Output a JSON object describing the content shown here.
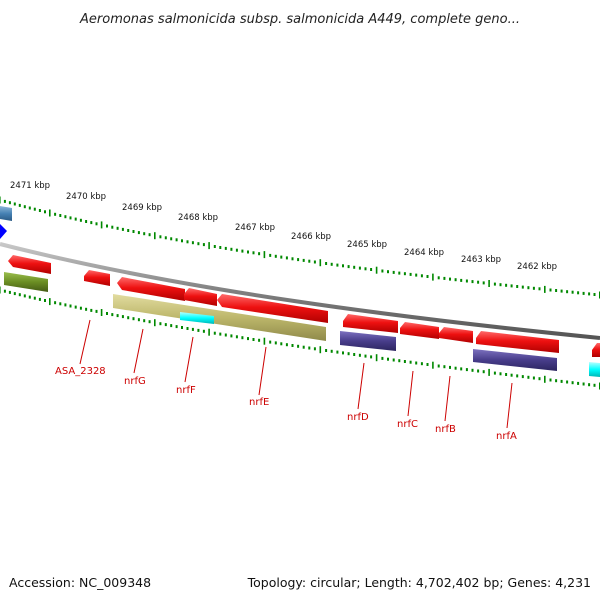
{
  "title": "Aeromonas salmonicida subsp. salmonicida A449, complete geno...",
  "footer": {
    "accession": "Accession: NC_009348",
    "topology": "Topology: circular; Length: 4,702,402 bp; Genes: 4,231"
  },
  "kbp_labels": [
    "2471 kbp",
    "2470 kbp",
    "2469 kbp",
    "2468 kbp",
    "2467 kbp",
    "2466 kbp",
    "2465 kbp",
    "2464 kbp",
    "2463 kbp",
    "2462 kbp"
  ],
  "gene_labels": [
    "ASA_2328",
    "nrfG",
    "nrfF",
    "nrfE",
    "nrfD",
    "nrfC",
    "nrfB",
    "nrfA"
  ],
  "colors": {
    "gene_red": "#ee1111",
    "khaki": "#bdb76b",
    "dark_slate_blue": "#483d8b",
    "olive": "#6b8e23",
    "cyan": "#00ffff",
    "steel_blue": "#4682b4",
    "blue": "#0000ff",
    "tick_green": "#008800",
    "backbone_grey": "#808080",
    "label_red": "#cc0000"
  }
}
